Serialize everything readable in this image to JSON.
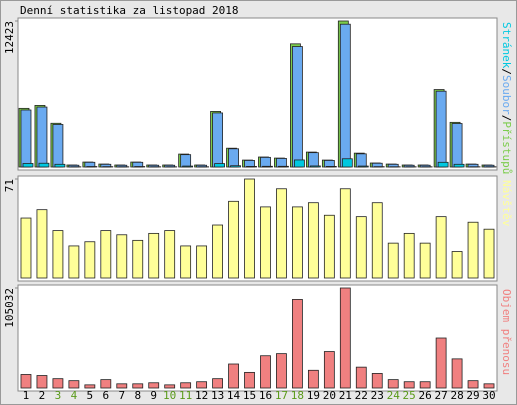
{
  "chart_data": [
    {
      "type": "bar",
      "title": "Denní statistika za listopad 2018",
      "ylim": [
        0,
        12423
      ],
      "yticks": [
        12423
      ],
      "legend_separator": "/",
      "series": [
        {
          "name": "Přístupů",
          "color": "#7ccd4c",
          "values": [
            4990,
            5240,
            3720,
            170,
            420,
            250,
            170,
            420,
            170,
            170,
            1100,
            170,
            4730,
            1600,
            590,
            850,
            760,
            10480,
            1270,
            590,
            12423,
            1180,
            340,
            250,
            170,
            170,
            6590,
            3800,
            250,
            170
          ]
        },
        {
          "name": "Soubor",
          "color": "#6aaaf0",
          "values": [
            4850,
            5100,
            3620,
            150,
            400,
            230,
            150,
            400,
            150,
            150,
            1050,
            150,
            4600,
            1550,
            560,
            820,
            730,
            10250,
            1220,
            560,
            12150,
            1120,
            320,
            230,
            150,
            150,
            6450,
            3700,
            230,
            150
          ]
        },
        {
          "name": "Stránek",
          "color": "#00c8e0",
          "values": [
            300,
            320,
            230,
            20,
            40,
            30,
            20,
            40,
            20,
            20,
            80,
            20,
            290,
            110,
            50,
            60,
            60,
            600,
            90,
            50,
            700,
            80,
            30,
            20,
            20,
            20,
            400,
            230,
            20,
            20
          ]
        }
      ]
    },
    {
      "type": "bar",
      "ylim": [
        0,
        71
      ],
      "yticks": [
        71
      ],
      "series": [
        {
          "name": "Návštěv",
          "color": "#ffff99",
          "values": [
            43,
            49,
            34,
            23,
            26,
            34,
            31,
            27,
            32,
            34,
            23,
            23,
            38,
            55,
            71,
            51,
            64,
            51,
            54,
            45,
            64,
            44,
            54,
            25,
            32,
            25,
            44,
            19,
            40,
            35
          ]
        }
      ]
    },
    {
      "type": "bar",
      "ylim": [
        0,
        105032
      ],
      "yticks": [
        105032
      ],
      "series": [
        {
          "name": "Objem přenosu",
          "color": "#f08080",
          "values": [
            14200,
            13100,
            9800,
            7700,
            3300,
            8800,
            4400,
            4400,
            5500,
            3300,
            5500,
            6600,
            9800,
            25200,
            16400,
            33900,
            36100,
            93000,
            18600,
            38300,
            105032,
            21900,
            15300,
            8800,
            6600,
            6600,
            52500,
            30600,
            7700,
            4400
          ]
        }
      ],
      "categories": [
        "1",
        "2",
        "3",
        "4",
        "5",
        "6",
        "7",
        "8",
        "9",
        "10",
        "11",
        "12",
        "13",
        "14",
        "15",
        "16",
        "17",
        "18",
        "19",
        "20",
        "21",
        "22",
        "23",
        "24",
        "25",
        "26",
        "27",
        "28",
        "29",
        "30"
      ],
      "label_colors": [
        "#000",
        "#000",
        "#5a9a1a",
        "#5a9a1a",
        "#000",
        "#000",
        "#000",
        "#000",
        "#000",
        "#5a9a1a",
        "#5a9a1a",
        "#000",
        "#000",
        "#000",
        "#000",
        "#000",
        "#5a9a1a",
        "#5a9a1a",
        "#000",
        "#000",
        "#000",
        "#000",
        "#000",
        "#5a9a1a",
        "#5a9a1a",
        "#000",
        "#000",
        "#000",
        "#000",
        "#000"
      ]
    }
  ]
}
